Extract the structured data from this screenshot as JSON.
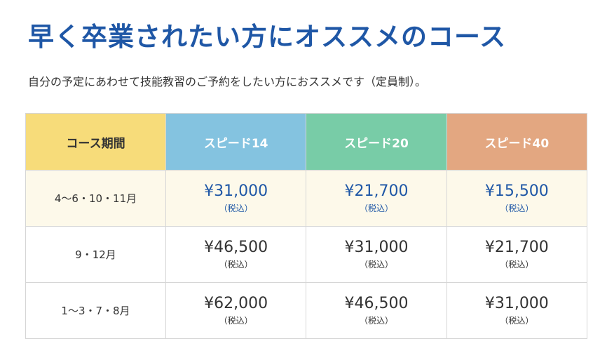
{
  "heading": {
    "title": "早く卒業されたい方にオススメのコース",
    "subtitle": "自分の予定にあわせて技能教習のご予約をしたい方におススメです（定員制）。"
  },
  "colors": {
    "title": "#1f57a6",
    "period_header_bg": "#f7dc7a",
    "speed14_header_bg": "#84c3e0",
    "speed20_header_bg": "#78cca7",
    "speed40_header_bg": "#e3a781",
    "first_row_bg": "#fdf9ea",
    "highlight_price": "#1f57a6",
    "normal_price": "#333333"
  },
  "table": {
    "headers": [
      "コース期間",
      "スピード14",
      "スピード20",
      "スピード40"
    ],
    "rows": [
      {
        "period": "4〜6・10・11月",
        "highlight": true,
        "prices": [
          {
            "price": "¥31,000",
            "tax": "（税込）"
          },
          {
            "price": "¥21,700",
            "tax": "（税込）"
          },
          {
            "price": "¥15,500",
            "tax": "（税込）"
          }
        ]
      },
      {
        "period": "9・12月",
        "highlight": false,
        "prices": [
          {
            "price": "¥46,500",
            "tax": "（税込）"
          },
          {
            "price": "¥31,000",
            "tax": "（税込）"
          },
          {
            "price": "¥21,700",
            "tax": "（税込）"
          }
        ]
      },
      {
        "period": "1〜3・7・8月",
        "highlight": false,
        "prices": [
          {
            "price": "¥62,000",
            "tax": "（税込）"
          },
          {
            "price": "¥46,500",
            "tax": "（税込）"
          },
          {
            "price": "¥31,000",
            "tax": "（税込）"
          }
        ]
      }
    ]
  }
}
